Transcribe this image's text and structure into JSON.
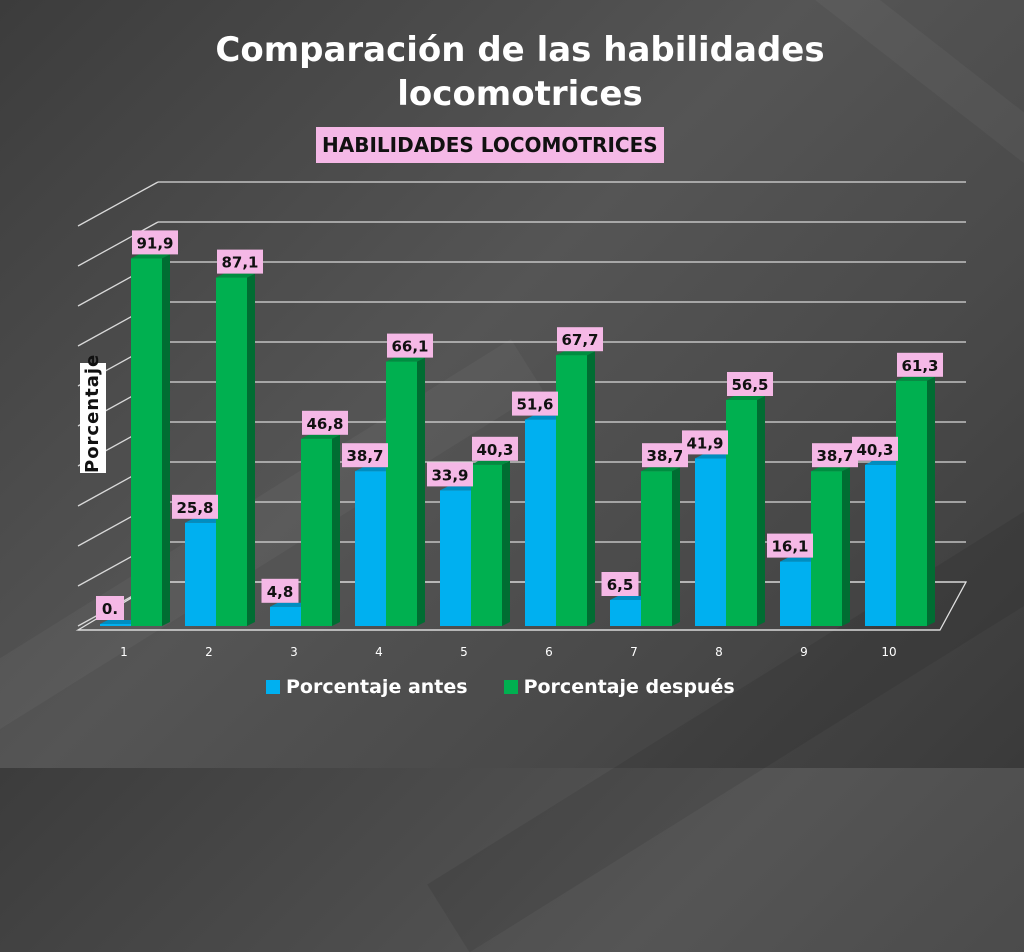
{
  "title": "Comparación de las habilidades locomotrices",
  "chart_data": {
    "type": "bar",
    "title": "HABILIDADES LOCOMOTRICES",
    "ylabel": "Porcentaje",
    "xlabel": "",
    "ylim": [
      0,
      100
    ],
    "grid": true,
    "legend_position": "bottom",
    "categories": [
      "1",
      "2",
      "3",
      "4",
      "5",
      "6",
      "7",
      "8",
      "9",
      "10"
    ],
    "series": [
      {
        "name": "Porcentaje antes",
        "color": "#00b0f0",
        "values": [
          0,
          25.8,
          4.8,
          38.7,
          33.9,
          51.6,
          6.5,
          41.9,
          16.1,
          40.3
        ],
        "labels": [
          "0.",
          "25,8",
          "4,8",
          "38,7",
          "33,9",
          "51,6",
          "6,5",
          "41,9",
          "16,1",
          "40,3"
        ]
      },
      {
        "name": "Porcentaje después",
        "color": "#00b050",
        "values": [
          91.9,
          87.1,
          46.8,
          66.1,
          40.3,
          67.7,
          38.7,
          56.5,
          38.7,
          61.3
        ],
        "labels": [
          "91,9",
          "87,1",
          "46,8",
          "66,1",
          "40,3",
          "67,7",
          "38,7",
          "56,5",
          "38,7",
          "61,3"
        ]
      }
    ]
  }
}
